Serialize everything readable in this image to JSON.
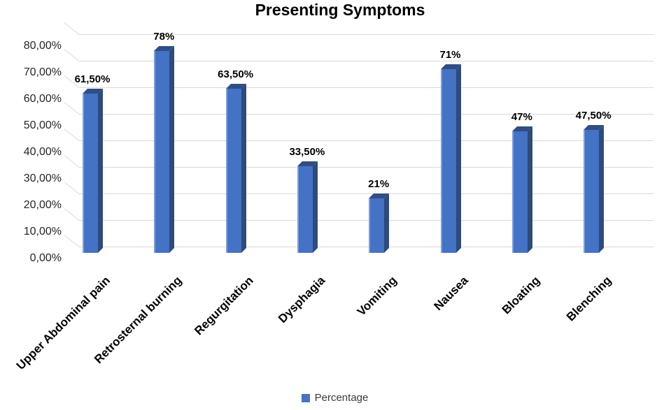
{
  "chart_data": {
    "type": "bar",
    "projection": "3d",
    "title": "Presenting Symptoms",
    "categories": [
      "Upper Abdominal pain",
      "Retrosternal burning",
      "Regurgitation",
      "Dysphagia",
      "Vomiting",
      "Nausea",
      "Bloating",
      "Blenching"
    ],
    "series": [
      {
        "name": "Percentage",
        "values": [
          61.5,
          78,
          63.5,
          33.5,
          21,
          71,
          47,
          47.5
        ]
      }
    ],
    "value_labels": [
      "61,50%",
      "78%",
      "63,50%",
      "33,50%",
      "21%",
      "71%",
      "47%",
      "47,50%"
    ],
    "y_axis": {
      "ticks": [
        0,
        10,
        20,
        30,
        40,
        50,
        60,
        70,
        80
      ],
      "tick_labels": [
        "0,00%",
        "10,00%",
        "20,00%",
        "30,00%",
        "40,00%",
        "50,00%",
        "60,00%",
        "70,00%",
        "80,00%"
      ],
      "ylim": [
        0,
        80
      ]
    },
    "grid": true,
    "legend": {
      "position": "bottom",
      "label": "Percentage"
    },
    "colors": {
      "bar_front": "#4472C4",
      "bar_side": "#2E4B7E",
      "bar_top": "#2F4E84",
      "bar_highlight": "#7FA1DC",
      "gridline": "#D9D9D9",
      "title_text": "#000000",
      "tick_text": "#262626",
      "value_label_text": "#000000",
      "legend_text": "#3B3B3B"
    }
  }
}
